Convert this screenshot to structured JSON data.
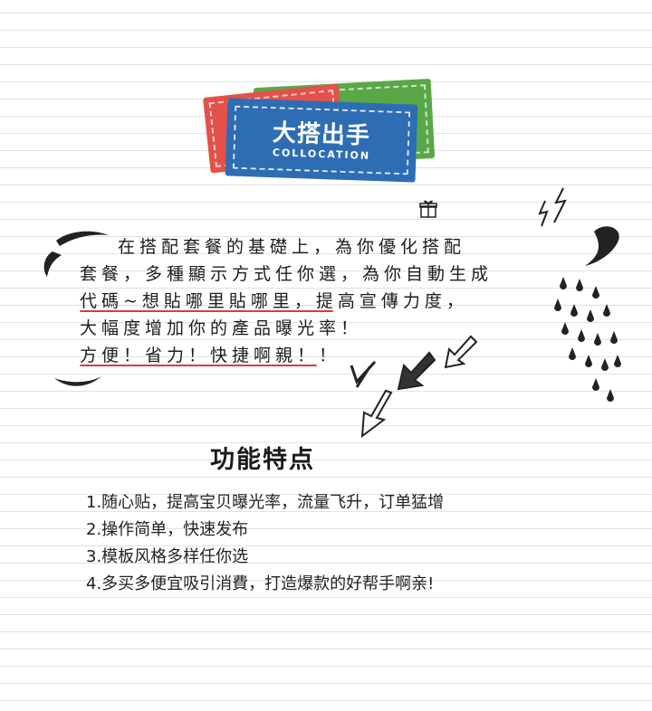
{
  "badge": {
    "title": "大搭出手",
    "subtitle": "COLLOCATION",
    "colors": {
      "blue": "#2e6db3",
      "red": "#e2524a",
      "green": "#5aa747"
    }
  },
  "intro_lines": [
    "在搭配套餐的基礎上，為你優化搭配",
    "套餐，多種顯示方式任你選，為你自動生成",
    "代碼~想貼哪里貼哪里，提高宣傳力度，",
    "大幅度增加你的產品曝光率！",
    "方便！省力！快捷啊親！！"
  ],
  "features_title": "功能特点",
  "features": [
    "1.随心贴，提高宝贝曝光率，流量飞升，订单猛增",
    "2.操作简单，快速发布",
    "3.模板风格多样任你选",
    "4.多买多便宜吸引消費，打造爆款的好帮手啊亲!"
  ],
  "icons": {
    "left_quote": "quote-left-icon",
    "right_quote": "quote-right-icon",
    "lightning": "lightning-icon",
    "gift": "gift-icon",
    "arrows": "sketch-arrow-icon",
    "raindrops": "raindrops-icon"
  },
  "accent": "#d83a4f"
}
